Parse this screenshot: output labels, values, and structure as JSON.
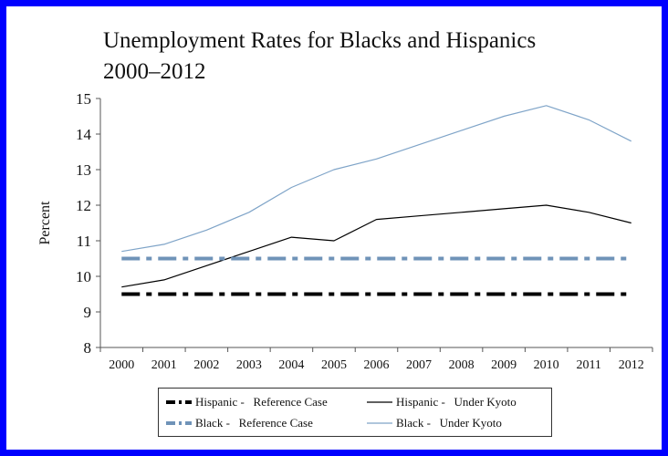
{
  "chart_data": {
    "type": "line",
    "title_line1": "Unemployment Rates for Blacks and Hispanics",
    "title_line2": "2000–2012",
    "ylabel": "Percent",
    "xlabel": "",
    "ylim": [
      8,
      15
    ],
    "yticks": [
      "8",
      "9",
      "10",
      "11",
      "12",
      "13",
      "14",
      "15"
    ],
    "x": [
      "2000",
      "2001",
      "2002",
      "2003",
      "2004",
      "2005",
      "2006",
      "2007",
      "2008",
      "2009",
      "2010",
      "2011",
      "2012"
    ],
    "grid": false,
    "legend_position": "bottom",
    "series": [
      {
        "name": "Hispanic -   Reference Case",
        "style": "dashdot",
        "color": "#000000",
        "values": [
          9.5,
          9.5,
          9.5,
          9.5,
          9.5,
          9.5,
          9.5,
          9.5,
          9.5,
          9.5,
          9.5,
          9.5,
          9.5
        ]
      },
      {
        "name": "Hispanic -   Under Kyoto",
        "style": "solid",
        "color": "#000000",
        "values": [
          9.7,
          9.9,
          10.3,
          10.7,
          11.1,
          11.0,
          11.6,
          11.7,
          11.8,
          11.9,
          12.0,
          11.8,
          11.5
        ]
      },
      {
        "name": "Black -   Reference Case",
        "style": "dashdot",
        "color": "#6f93b8",
        "values": [
          10.5,
          10.5,
          10.5,
          10.5,
          10.5,
          10.5,
          10.5,
          10.5,
          10.5,
          10.5,
          10.5,
          10.5,
          10.5
        ]
      },
      {
        "name": "Black -   Under Kyoto",
        "style": "solid",
        "color": "#7fa4c8",
        "values": [
          10.7,
          10.9,
          11.3,
          11.8,
          12.5,
          13.0,
          13.3,
          13.7,
          14.1,
          14.5,
          14.8,
          14.4,
          13.8
        ]
      }
    ]
  }
}
